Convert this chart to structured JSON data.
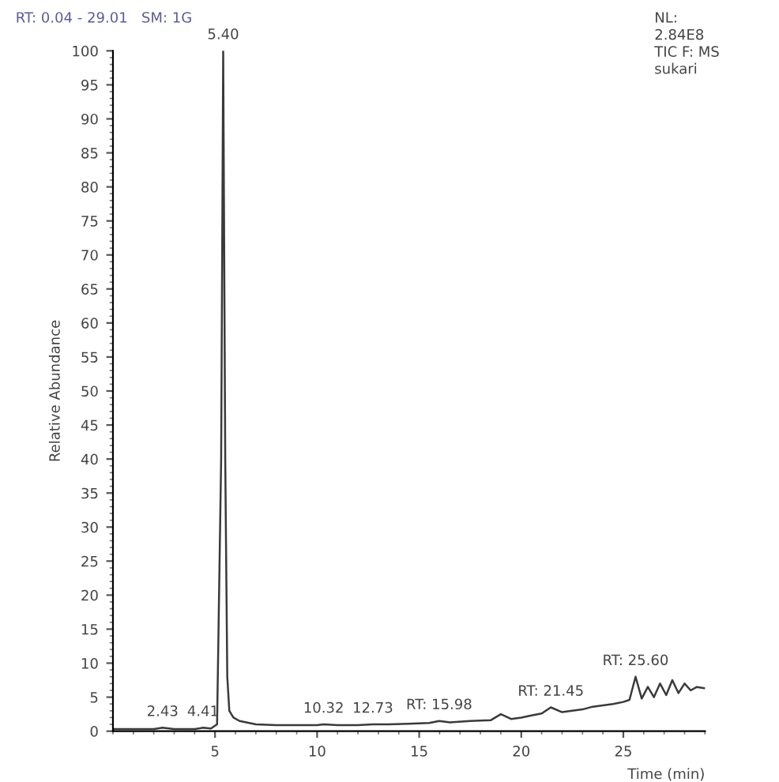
{
  "chart_data": {
    "type": "line",
    "title": "RT: 0.04 - 29.01   SM: 1G",
    "subtitle": "NL:\n2.84E8\nTIC F: MS\nsukari",
    "xlabel": "Time (min)",
    "ylabel": "Relative Abundance",
    "x": [
      0.04,
      1.0,
      2.0,
      2.43,
      3.0,
      4.0,
      4.41,
      4.8,
      5.1,
      5.3,
      5.4,
      5.5,
      5.6,
      5.7,
      5.9,
      6.2,
      7.0,
      8.0,
      9.0,
      10.0,
      10.32,
      11.0,
      12.0,
      12.73,
      13.5,
      14.5,
      15.5,
      15.98,
      16.5,
      17.5,
      18.5,
      19.0,
      19.5,
      20.0,
      20.5,
      21.0,
      21.45,
      22.0,
      22.5,
      23.0,
      23.5,
      24.0,
      24.5,
      25.0,
      25.3,
      25.6,
      25.9,
      26.2,
      26.5,
      26.8,
      27.1,
      27.4,
      27.7,
      28.0,
      28.3,
      28.6,
      29.0
    ],
    "series": [
      {
        "color": "#3a3a3a",
        "values": [
          0.3,
          0.3,
          0.3,
          0.5,
          0.3,
          0.3,
          0.5,
          0.4,
          1.0,
          40,
          100,
          40,
          8,
          3,
          2,
          1.5,
          1.0,
          0.9,
          0.9,
          0.9,
          1.0,
          0.9,
          0.9,
          1.0,
          1.0,
          1.1,
          1.2,
          1.5,
          1.3,
          1.5,
          1.6,
          2.5,
          1.8,
          2.0,
          2.3,
          2.6,
          3.5,
          2.8,
          3.0,
          3.2,
          3.6,
          3.8,
          4.0,
          4.3,
          4.6,
          8.0,
          4.8,
          6.5,
          5.0,
          7.0,
          5.3,
          7.5,
          5.6,
          7.0,
          6.0,
          6.5,
          6.3
        ]
      }
    ],
    "xlim": [
      0,
      29
    ],
    "xticks": [
      5,
      10,
      15,
      20,
      25
    ],
    "ylim": [
      0,
      100
    ],
    "yticks": [
      0,
      5,
      10,
      15,
      20,
      25,
      30,
      35,
      40,
      45,
      50,
      55,
      60,
      65,
      70,
      75,
      80,
      85,
      90,
      95,
      100
    ],
    "annotations": [
      {
        "text": "5.40",
        "x": 5.4,
        "y": 100
      },
      {
        "text": "2.43",
        "x": 2.43,
        "y": 0.5
      },
      {
        "text": "4.41",
        "x": 4.41,
        "y": 0.5
      },
      {
        "text": "10.32",
        "x": 10.32,
        "y": 1.0
      },
      {
        "text": "12.73",
        "x": 12.73,
        "y": 1.0
      },
      {
        "text": "RT: 15.98",
        "x": 15.98,
        "y": 1.5
      },
      {
        "text": "RT: 21.45",
        "x": 21.45,
        "y": 3.5
      },
      {
        "text": "RT: 25.60",
        "x": 25.6,
        "y": 8.0
      }
    ],
    "grid": false,
    "legend": false
  }
}
